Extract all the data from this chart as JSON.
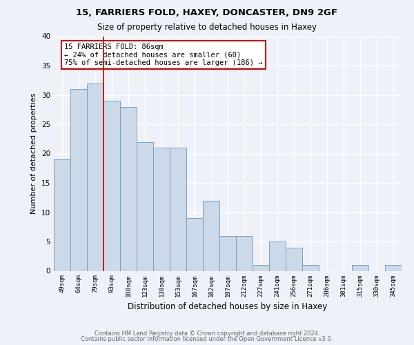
{
  "title1": "15, FARRIERS FOLD, HAXEY, DONCASTER, DN9 2GF",
  "title2": "Size of property relative to detached houses in Haxey",
  "xlabel": "Distribution of detached houses by size in Haxey",
  "ylabel": "Number of detached properties",
  "bar_labels": [
    "49sqm",
    "64sqm",
    "79sqm",
    "93sqm",
    "108sqm",
    "123sqm",
    "138sqm",
    "153sqm",
    "167sqm",
    "182sqm",
    "197sqm",
    "212sqm",
    "227sqm",
    "241sqm",
    "256sqm",
    "271sqm",
    "286sqm",
    "301sqm",
    "315sqm",
    "330sqm",
    "345sqm"
  ],
  "bar_values": [
    19,
    31,
    32,
    29,
    28,
    22,
    21,
    21,
    9,
    12,
    6,
    6,
    1,
    5,
    4,
    1,
    0,
    0,
    1,
    0,
    1
  ],
  "bar_color": "#ccd9e8",
  "bar_edge_color": "#7a9fc0",
  "property_line_x": 2.5,
  "annotation_line1": "15 FARRIERS FOLD: 86sqm",
  "annotation_line2": "← 24% of detached houses are smaller (60)",
  "annotation_line3": "75% of semi-detached houses are larger (186) →",
  "annotation_box_color": "#ffffff",
  "annotation_box_edge": "#cc0000",
  "vline_color": "#cc0000",
  "ylim": [
    0,
    40
  ],
  "yticks": [
    0,
    5,
    10,
    15,
    20,
    25,
    30,
    35,
    40
  ],
  "background_color": "#eef2f8",
  "grid_color": "#ffffff",
  "footer_line1": "Contains HM Land Registry data © Crown copyright and database right 2024.",
  "footer_line2": "Contains public sector information licensed under the Open Government Licence v3.0."
}
